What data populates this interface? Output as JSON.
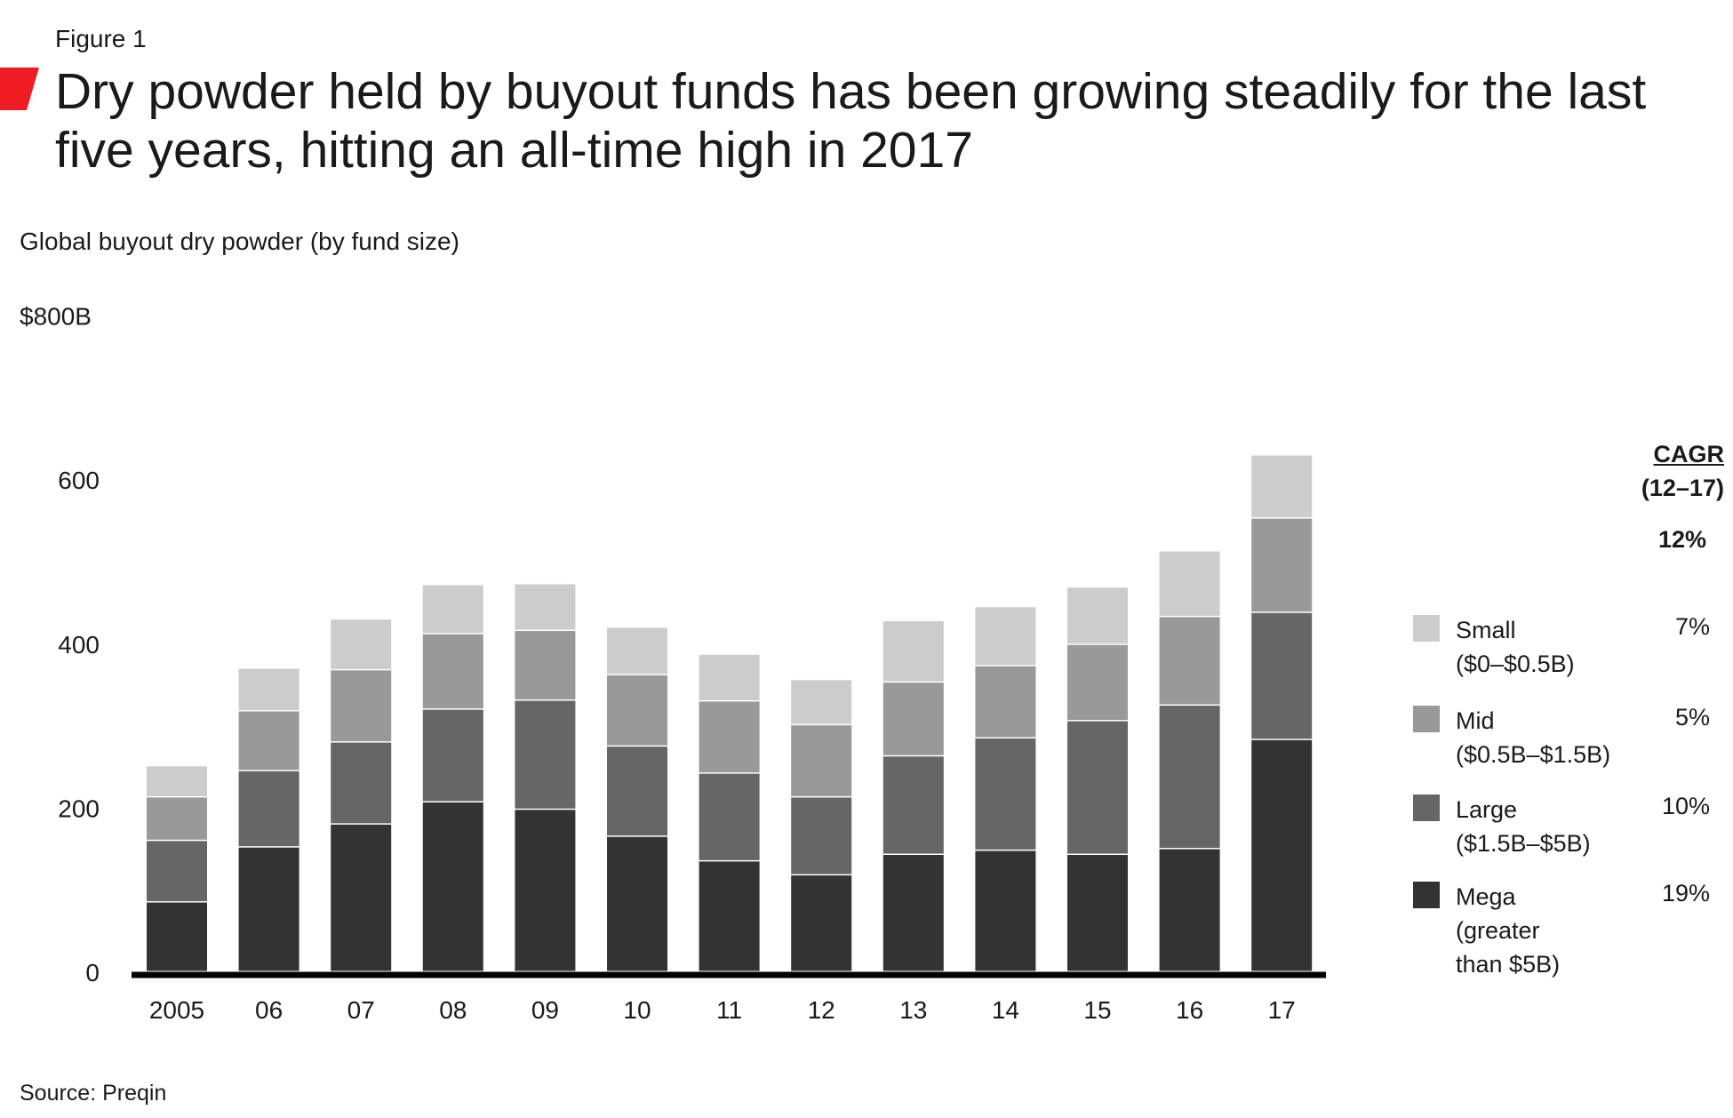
{
  "figure_label": "Figure 1",
  "title": "Dry powder held by buyout funds has been growing steadily for the last five years, hitting an all-time high in 2017",
  "subtitle": "Global buyout dry powder (by fund size)",
  "source": "Source: Preqin",
  "colors": {
    "accent": "#ee1c25",
    "mega": "#333333",
    "large": "#666666",
    "mid": "#999999",
    "small": "#cccccc",
    "axis": "#000000"
  },
  "cagr": {
    "title": "CAGR",
    "range": "(12–17)",
    "total": "12%"
  },
  "legend": [
    {
      "key": "small",
      "name": "Small",
      "range": "($0–$0.5B)",
      "cagr": "7%"
    },
    {
      "key": "mid",
      "name": "Mid",
      "range": "($0.5B–$1.5B)",
      "cagr": "5%"
    },
    {
      "key": "large",
      "name": "Large",
      "range": "($1.5B–$5B)",
      "cagr": "10%"
    },
    {
      "key": "mega",
      "name": "Mega",
      "range": "(greater than $5B)",
      "cagr": "19%"
    }
  ],
  "chart_data": {
    "type": "bar",
    "stacked": true,
    "title": "Dry powder held by buyout funds has been growing steadily for the last five years, hitting an all-time high in 2017",
    "subtitle": "Global buyout dry powder (by fund size)",
    "categories": [
      "2005",
      "06",
      "07",
      "08",
      "09",
      "10",
      "11",
      "12",
      "13",
      "14",
      "15",
      "16",
      "17"
    ],
    "y_ticks": [
      "0",
      "200",
      "400",
      "600",
      "$800B"
    ],
    "y_tick_values": [
      0,
      200,
      400,
      600,
      800
    ],
    "ylim": [
      0,
      800
    ],
    "grid": false,
    "legend_position": "right",
    "series": [
      {
        "name": "Mega",
        "key": "mega",
        "values": [
          85,
          152,
          180,
          207,
          198,
          165,
          135,
          118,
          143,
          148,
          143,
          150,
          283
        ]
      },
      {
        "name": "Large",
        "key": "large",
        "values": [
          75,
          93,
          100,
          113,
          133,
          110,
          107,
          95,
          120,
          137,
          163,
          175,
          155
        ]
      },
      {
        "name": "Mid",
        "key": "mid",
        "values": [
          53,
          73,
          88,
          92,
          85,
          87,
          88,
          88,
          90,
          88,
          93,
          108,
          115
        ]
      },
      {
        "name": "Small",
        "key": "small",
        "values": [
          38,
          52,
          62,
          60,
          57,
          58,
          57,
          55,
          75,
          72,
          70,
          80,
          77
        ]
      }
    ]
  }
}
